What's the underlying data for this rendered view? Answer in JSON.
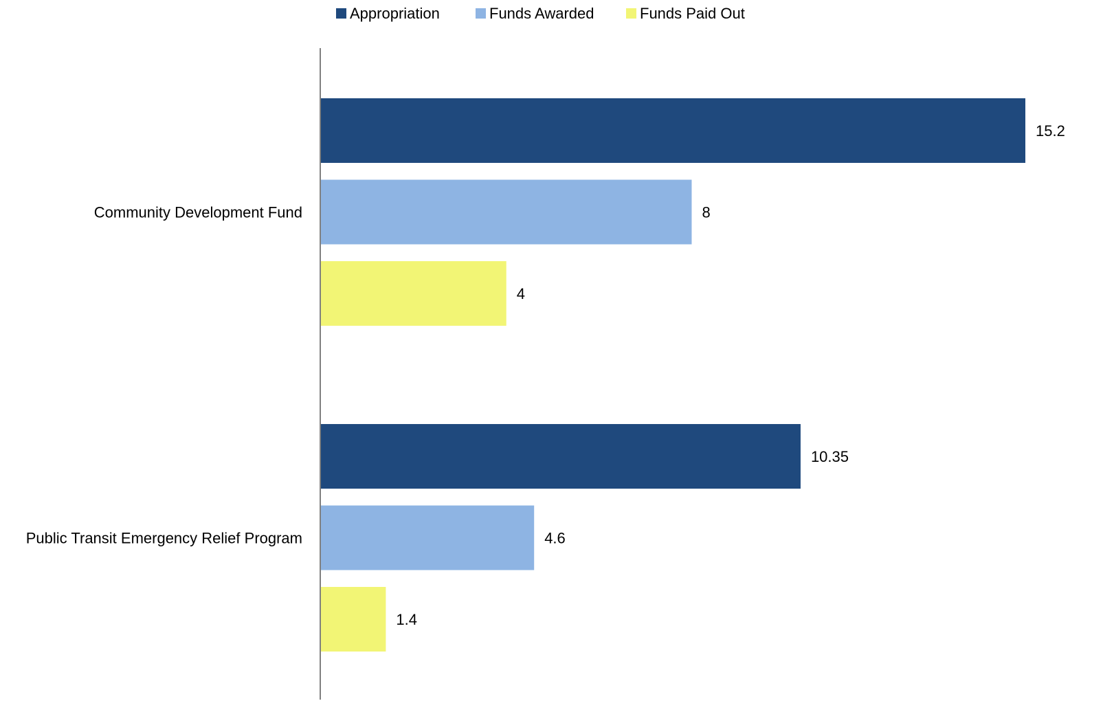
{
  "chart_data": {
    "type": "bar",
    "orientation": "horizontal",
    "categories": [
      "Community Development Fund",
      "Public Transit Emergency Relief Program"
    ],
    "series": [
      {
        "name": "Appropriation",
        "color": "#1f497d",
        "values": [
          15.2,
          10.35
        ],
        "labels": [
          "15.2",
          "10.35"
        ]
      },
      {
        "name": "Funds Awarded",
        "color": "#8eb4e3",
        "values": [
          8,
          4.6
        ],
        "labels": [
          "8",
          "4.6"
        ]
      },
      {
        "name": "Funds Paid Out",
        "color": "#f2f575",
        "values": [
          4,
          1.4
        ],
        "labels": [
          "4",
          "1.4"
        ]
      }
    ],
    "xlim": [
      0,
      15.2
    ],
    "grid": false,
    "legend_position": "top-center",
    "axis_color": "#808080"
  }
}
